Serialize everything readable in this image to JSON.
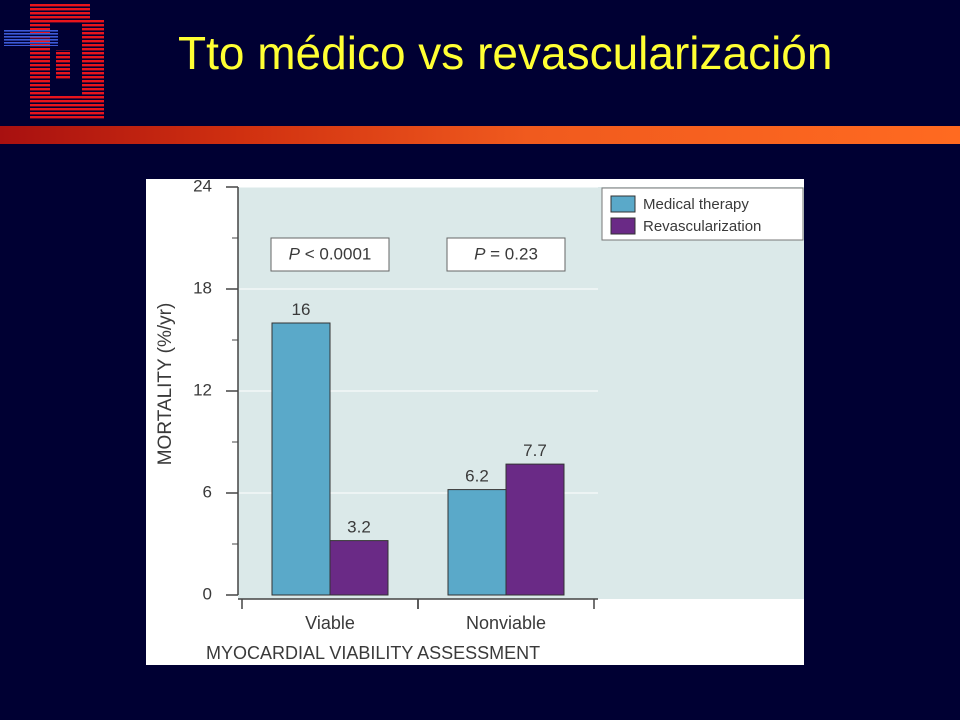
{
  "slide": {
    "title": "Tto médico vs revascularización",
    "logo_icon": "hospital-logo-icon"
  },
  "colors": {
    "background": "#000033",
    "title_text": "#ffff33",
    "accent_bar": "#f05a1e",
    "plot_area": "#dbe9e9",
    "medical_therapy": "#5aa9c9",
    "revascularization": "#6a2a86"
  },
  "chart_data": {
    "type": "bar",
    "categories": [
      "Viable",
      "Nonviable"
    ],
    "series": [
      {
        "name": "Medical therapy",
        "values": [
          16,
          6.2
        ],
        "labels": [
          "16",
          "6.2"
        ]
      },
      {
        "name": "Revascularization",
        "values": [
          3.2,
          7.7
        ],
        "labels": [
          "3.2",
          "7.7"
        ]
      }
    ],
    "xlabel": "MYOCARDIAL VIABILITY ASSESSMENT",
    "ylabel": "MORTALITY (%/yr)",
    "ylim": [
      0,
      24
    ],
    "yticks": [
      0,
      6,
      12,
      18,
      24
    ],
    "legend_position": "top-right",
    "annotations": [
      {
        "category": "Viable",
        "p_symbol": "P",
        "rest": " < 0.0001"
      },
      {
        "category": "Nonviable",
        "p_symbol": "P",
        "rest": " = 0.23"
      }
    ],
    "grid": true
  }
}
